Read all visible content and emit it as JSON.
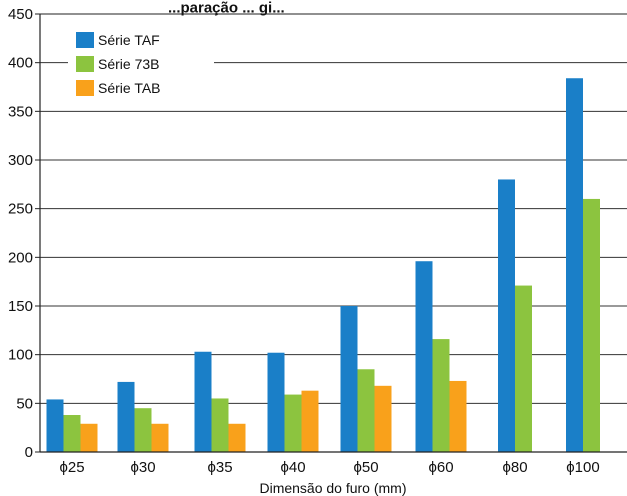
{
  "chart_data": {
    "type": "bar",
    "title_fragment": "...paração ... gi...",
    "xlabel": "Dimensão do furo (mm)",
    "ylabel": "",
    "ylim": [
      0,
      450
    ],
    "yticks": [
      0,
      50,
      100,
      150,
      200,
      250,
      300,
      350,
      400,
      450
    ],
    "grid": true,
    "legend_position": "top-left",
    "categories": [
      "ϕ25",
      "ϕ30",
      "ϕ35",
      "ϕ40",
      "ϕ50",
      "ϕ60",
      "ϕ80",
      "ϕ100"
    ],
    "series": [
      {
        "name": "Série TAF",
        "color": "#1a7fc8",
        "values": [
          54,
          72,
          103,
          102,
          150,
          196,
          280,
          384
        ]
      },
      {
        "name": "Série 73B",
        "color": "#8cc43f",
        "values": [
          38,
          45,
          55,
          59,
          85,
          116,
          171,
          260
        ]
      },
      {
        "name": "Série TAB",
        "color": "#f9a11b",
        "values": [
          29,
          29,
          29,
          63,
          68,
          73,
          null,
          null
        ]
      }
    ]
  }
}
